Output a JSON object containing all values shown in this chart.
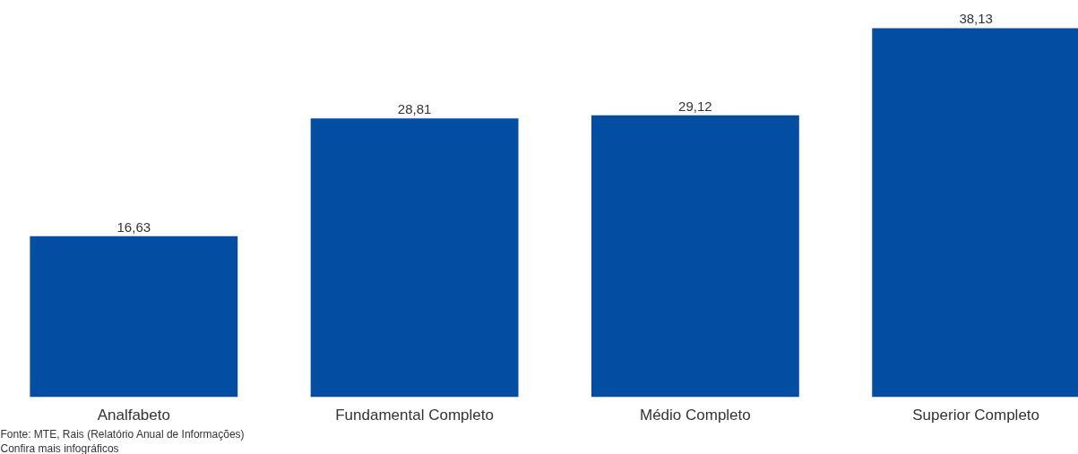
{
  "chart_data": {
    "type": "bar",
    "categories": [
      "Analfabeto",
      "Fundamental Completo",
      "Médio Completo",
      "Superior Completo"
    ],
    "values": [
      16.63,
      28.81,
      29.12,
      38.13
    ],
    "value_labels": [
      "16,63",
      "28,81",
      "29,12",
      "38,13"
    ],
    "color": "#034ea2",
    "grid": false,
    "annotations": [
      "Fonte: MTE, Rais (Relatório Anual de Informações)",
      "Confira mais infográficos"
    ]
  }
}
